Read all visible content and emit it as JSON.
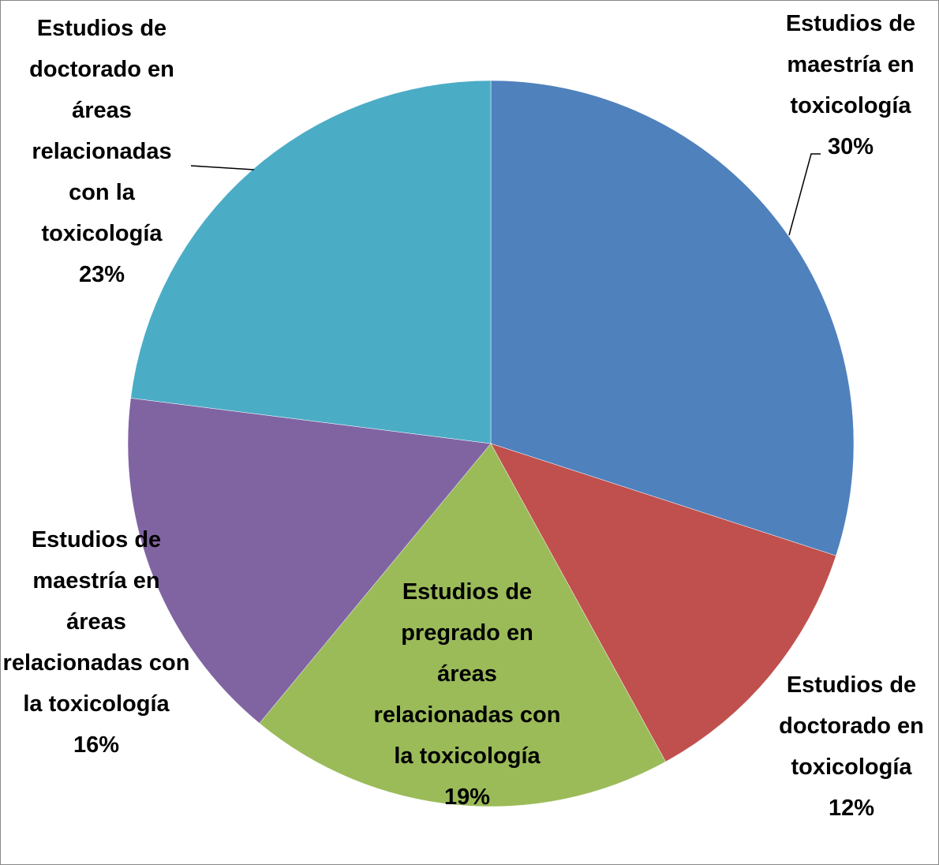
{
  "chart_data": {
    "type": "pie",
    "categories": [
      "Estudios de maestría en toxicología",
      "Estudios de doctorado en toxicología",
      "Estudios de pregrado en áreas relacionadas con la toxicología",
      "Estudios de maestría en áreas relacionadas con la toxicología",
      "Estudios de doctorado en áreas relacionadas con la toxicología"
    ],
    "values": [
      30,
      12,
      19,
      16,
      23
    ],
    "value_labels": [
      "30%",
      "12%",
      "19%",
      "16%",
      "23%"
    ],
    "colors": [
      "#4f81bd",
      "#c0504d",
      "#9bbb59",
      "#8064a2",
      "#4bacc6"
    ]
  }
}
